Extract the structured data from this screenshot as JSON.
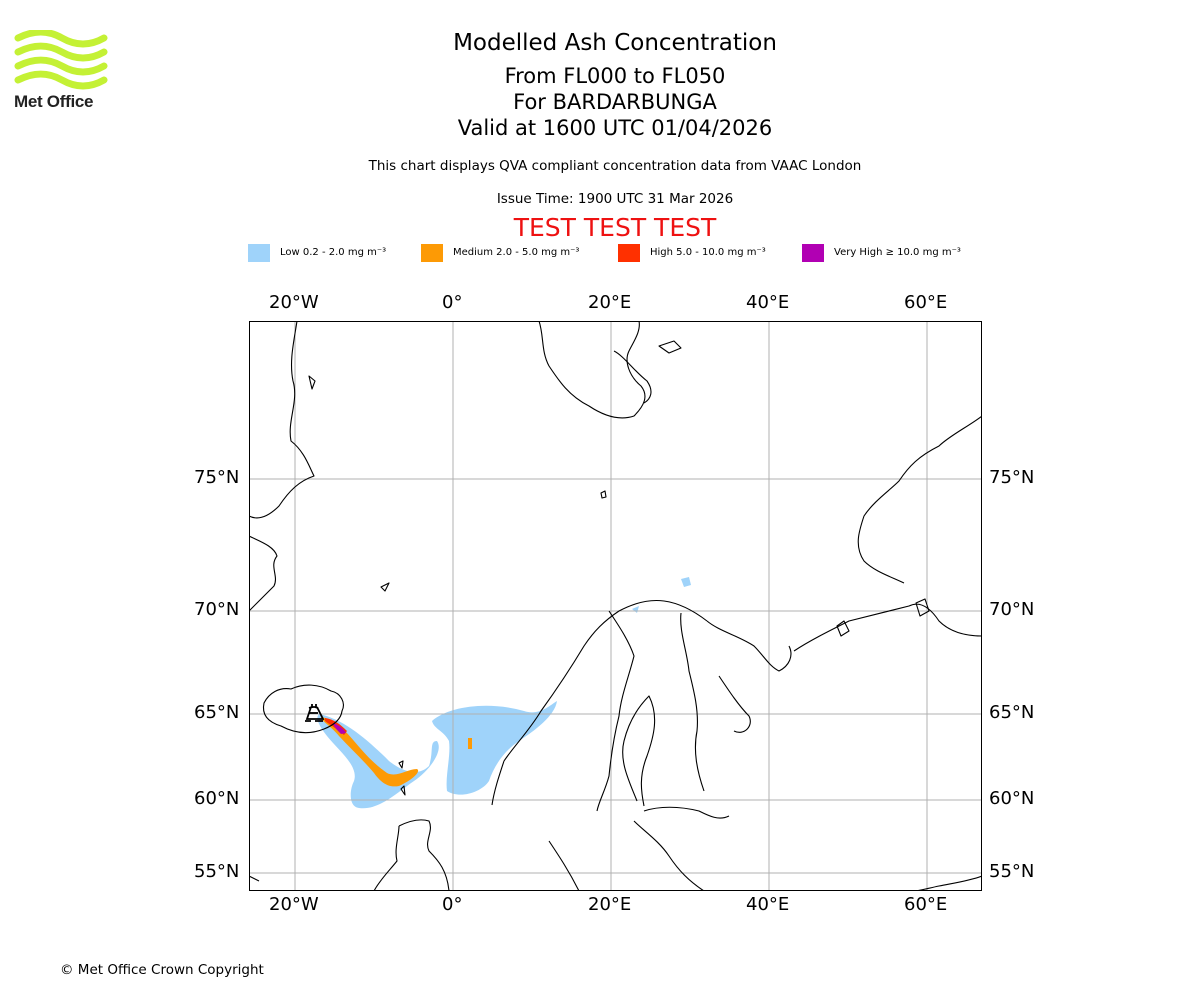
{
  "header": {
    "title": "Modelled Ash Concentration",
    "level_range": "From FL000 to FL050",
    "volcano": "For BARDARBUNGA",
    "valid_time": "Valid at 1600 UTC 01/04/2026",
    "description": "This chart displays QVA compliant concentration data from VAAC London",
    "issue_time": "Issue Time: 1900 UTC 31 Mar 2026",
    "test_banner": "TEST TEST TEST"
  },
  "logo": {
    "name": "Met Office",
    "color": "#c4f135"
  },
  "legend": [
    {
      "label": "Low 0.2 - 2.0 mg m⁻³",
      "color": "#9fd3fa"
    },
    {
      "label": "Medium 2.0 - 5.0 mg m⁻³",
      "color": "#fd9a05"
    },
    {
      "label": "High 5.0 - 10.0 mg m⁻³",
      "color": "#ff3000"
    },
    {
      "label": "Very High ≥ 10.0 mg m⁻³",
      "color": "#b100b3"
    }
  ],
  "map": {
    "lon_labels": [
      "20°W",
      "0°",
      "20°E",
      "40°E",
      "60°E"
    ],
    "lat_labels": [
      "75°N",
      "70°N",
      "65°N",
      "60°N",
      "55°N"
    ],
    "volcano_icon": "volcano-icon"
  },
  "footer": {
    "copyright": "© Met Office Crown Copyright"
  }
}
